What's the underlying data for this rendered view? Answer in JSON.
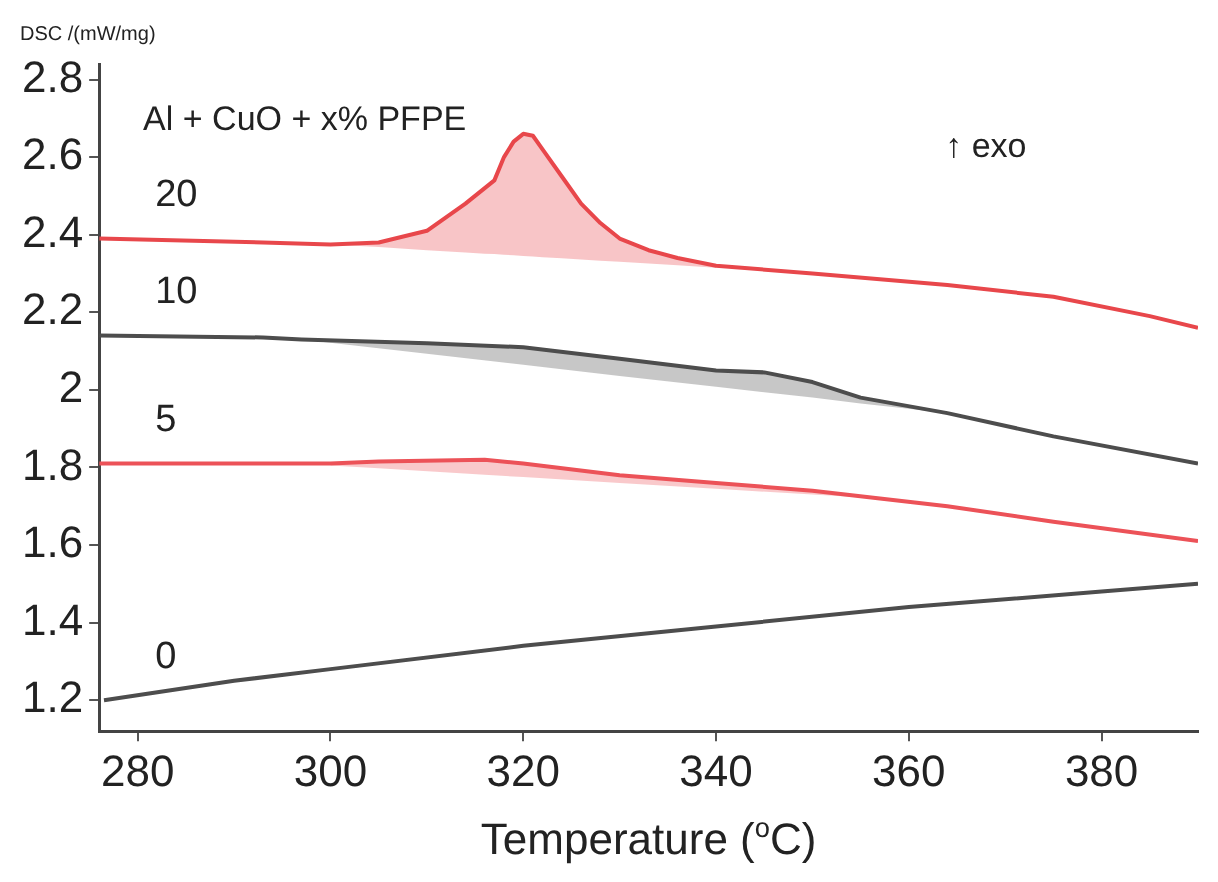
{
  "chart_data": {
    "type": "line",
    "ylabel": "DSC /(mW/mg)",
    "xlabel": "Temperature ($^{o}$C)",
    "annotations": [
      "Al + CuO + x% PFPE",
      "↑ exo"
    ],
    "xlim": [
      276,
      390
    ],
    "xticks": [
      280,
      300,
      320,
      340,
      360,
      380
    ],
    "ylim": [
      1.12,
      2.84
    ],
    "yticks": [
      1.2,
      1.4,
      1.6,
      1.8,
      2.0,
      2.2,
      2.4,
      2.6,
      2.8
    ],
    "grid": false,
    "legend": false,
    "marker": "none",
    "line_style": "solid",
    "series": [
      {
        "name": "20",
        "color": "#e8474b",
        "x": [
          276,
          293,
          300,
          305,
          310,
          314,
          316,
          317,
          318,
          319,
          320,
          321,
          322,
          324,
          326,
          328,
          330,
          333,
          336,
          340,
          350,
          364,
          375,
          385,
          390
        ],
        "values": [
          2.39,
          2.38,
          2.375,
          2.38,
          2.41,
          2.48,
          2.52,
          2.54,
          2.6,
          2.64,
          2.66,
          2.655,
          2.62,
          2.55,
          2.48,
          2.43,
          2.39,
          2.36,
          2.34,
          2.32,
          2.3,
          2.27,
          2.24,
          2.19,
          2.16
        ],
        "lower": [
          null,
          null,
          2.375,
          2.368,
          2.36,
          2.354,
          2.351,
          2.35,
          2.348,
          2.347,
          2.345,
          2.344,
          2.342,
          2.339,
          2.336,
          2.333,
          2.33,
          2.326,
          2.321,
          2.315,
          null,
          null,
          null,
          null,
          null
        ],
        "upper": [
          null,
          null,
          2.375,
          2.38,
          2.41,
          2.48,
          2.52,
          2.54,
          2.6,
          2.64,
          2.66,
          2.655,
          2.62,
          2.55,
          2.48,
          2.43,
          2.39,
          2.36,
          2.34,
          2.32,
          null,
          null,
          null,
          null,
          null
        ]
      },
      {
        "name": "10",
        "color": "#4d4d4d",
        "x": [
          276,
          293,
          297,
          310,
          320,
          330,
          340,
          345,
          350,
          355,
          364,
          375,
          390
        ],
        "values": [
          2.14,
          2.135,
          2.13,
          2.12,
          2.11,
          2.08,
          2.05,
          2.045,
          2.02,
          1.98,
          1.94,
          1.88,
          1.81
        ],
        "lower": [
          null,
          null,
          2.13,
          2.093,
          2.065,
          2.036,
          2.008,
          1.994,
          1.98,
          1.965,
          1.94,
          null,
          null
        ],
        "upper": [
          null,
          null,
          2.13,
          2.12,
          2.11,
          2.08,
          2.05,
          2.045,
          2.02,
          1.98,
          1.94,
          null,
          null
        ]
      },
      {
        "name": "5",
        "color": "#ec5258",
        "x": [
          276,
          293,
          300,
          305,
          316,
          320,
          330,
          340,
          350,
          357,
          364,
          375,
          390
        ],
        "values": [
          1.81,
          1.81,
          1.81,
          1.815,
          1.82,
          1.81,
          1.78,
          1.76,
          1.74,
          1.72,
          1.7,
          1.66,
          1.61
        ],
        "lower": [
          null,
          null,
          1.805,
          1.798,
          1.781,
          1.775,
          1.76,
          1.745,
          1.73,
          1.72,
          null,
          null,
          null
        ],
        "upper": [
          null,
          null,
          1.81,
          1.815,
          1.82,
          1.81,
          1.78,
          1.76,
          1.74,
          1.72,
          null,
          null,
          null
        ]
      },
      {
        "name": "0",
        "color": "#4d4d4d",
        "x": [
          276.5,
          290,
          300,
          320,
          340,
          360,
          380,
          390
        ],
        "values": [
          1.2,
          1.25,
          1.28,
          1.34,
          1.39,
          1.44,
          1.48,
          1.5
        ]
      }
    ]
  }
}
